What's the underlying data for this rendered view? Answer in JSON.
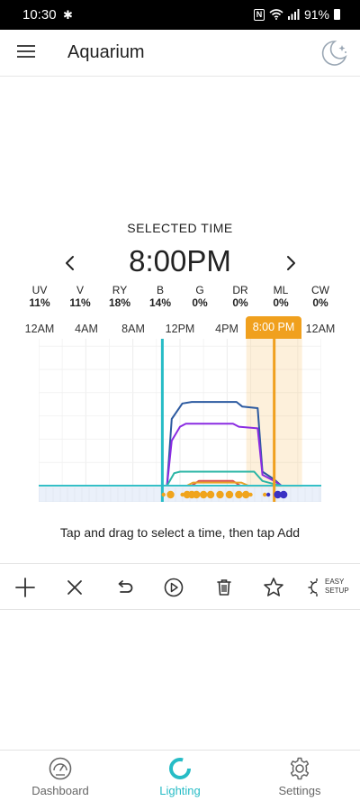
{
  "status_bar": {
    "time": "10:30",
    "battery": "91%",
    "icons": [
      "slack-icon",
      "nfc-icon",
      "wifi-icon",
      "signal-icon",
      "battery-icon"
    ]
  },
  "app_bar": {
    "title": "Aquarium",
    "menu_icon": "hamburger-menu-icon",
    "night_mode_icon": "moon-icon"
  },
  "selected": {
    "label": "SELECTED TIME",
    "time": "8:00PM"
  },
  "channels": [
    {
      "name": "UV",
      "value": "11%"
    },
    {
      "name": "V",
      "value": "11%"
    },
    {
      "name": "RY",
      "value": "18%"
    },
    {
      "name": "B",
      "value": "14%"
    },
    {
      "name": "G",
      "value": "0%"
    },
    {
      "name": "DR",
      "value": "0%"
    },
    {
      "name": "ML",
      "value": "0%"
    },
    {
      "name": "CW",
      "value": "0%"
    }
  ],
  "timeline": {
    "ticks": [
      "12AM",
      "4AM",
      "8AM",
      "12PM",
      "4PM",
      "8:00 PM",
      "12AM"
    ],
    "selected_tick": "8:00 PM"
  },
  "chart_data": {
    "type": "line",
    "x_unit": "hour of day",
    "xlim": [
      0,
      24
    ],
    "ylim": [
      0,
      100
    ],
    "selected_hour": 20,
    "current_hour": 10.5,
    "series": [
      {
        "color": "#2c5aa0",
        "x": [
          0,
          10.9,
          11.3,
          12.2,
          13,
          16.8,
          17.3,
          18.6,
          19.0,
          20.0,
          20.6,
          24
        ],
        "y": [
          0,
          0,
          43,
          53,
          54,
          54,
          51,
          50,
          9,
          4,
          0,
          0
        ]
      },
      {
        "color": "#8a2be2",
        "x": [
          0,
          10.9,
          11.3,
          12.0,
          12.5,
          16.5,
          17.0,
          18.6,
          19.0,
          20.0,
          20.6,
          24
        ],
        "y": [
          0,
          0,
          29,
          38,
          40,
          40,
          38,
          37,
          7,
          3,
          0,
          0
        ]
      },
      {
        "color": "#2ab5a5",
        "x": [
          0,
          10.9,
          11.5,
          12.0,
          17.5,
          18.3,
          19.0,
          20.0,
          20.6,
          24
        ],
        "y": [
          0,
          0,
          8,
          9,
          9,
          9,
          3,
          1,
          0,
          0
        ]
      },
      {
        "color": "#d94a4a",
        "x": [
          0,
          13.0,
          13.6,
          16.5,
          17.1,
          24
        ],
        "y": [
          0,
          0,
          3,
          3,
          0,
          0
        ]
      },
      {
        "color": "#e8a22a",
        "x": [
          0,
          12.6,
          13.1,
          17.2,
          17.8,
          24
        ],
        "y": [
          0,
          0,
          2,
          2,
          0,
          0
        ]
      },
      {
        "color": "#35bfc7",
        "x": [
          0,
          24
        ],
        "y": [
          0,
          0
        ]
      }
    ],
    "markers": [
      {
        "x": 10.6,
        "size": "small",
        "color": "#f0a41c"
      },
      {
        "x": 11.2,
        "size": "large",
        "color": "#f0a41c"
      },
      {
        "x": 12.2,
        "size": "small",
        "color": "#f0a41c"
      },
      {
        "x": 12.6,
        "size": "large",
        "color": "#f0a41c"
      },
      {
        "x": 13.0,
        "size": "large",
        "color": "#f0a41c"
      },
      {
        "x": 13.4,
        "size": "large",
        "color": "#f0a41c"
      },
      {
        "x": 14.0,
        "size": "large",
        "color": "#f0a41c"
      },
      {
        "x": 14.6,
        "size": "large",
        "color": "#f0a41c"
      },
      {
        "x": 15.4,
        "size": "large",
        "color": "#f0a41c"
      },
      {
        "x": 16.2,
        "size": "large",
        "color": "#f0a41c"
      },
      {
        "x": 17.0,
        "size": "large",
        "color": "#f0a41c"
      },
      {
        "x": 17.6,
        "size": "large",
        "color": "#f0a41c"
      },
      {
        "x": 18.0,
        "size": "small",
        "color": "#f0a41c"
      },
      {
        "x": 19.2,
        "size": "small",
        "color": "#f0a41c"
      },
      {
        "x": 19.5,
        "size": "small",
        "color": "#3a32c4"
      },
      {
        "x": 20.3,
        "size": "large",
        "color": "#3a32c4"
      },
      {
        "x": 20.8,
        "size": "large",
        "color": "#3a32c4"
      }
    ]
  },
  "hint": "Tap and drag to select a time, then tap Add",
  "toolbar": {
    "buttons": [
      "add-icon",
      "close-icon",
      "undo-icon",
      "play-icon",
      "trash-icon",
      "star-icon"
    ],
    "easy_setup_line1": "EASY",
    "easy_setup_line2": "SETUP"
  },
  "bottom_nav": {
    "items": [
      {
        "label": "Dashboard",
        "icon": "dashboard-gauge-icon"
      },
      {
        "label": "Lighting",
        "icon": "lighting-ring-icon",
        "active": true
      },
      {
        "label": "Settings",
        "icon": "gear-icon"
      }
    ]
  },
  "colors": {
    "accent": "#27bcc6",
    "selected": "#f0a01e",
    "text": "#222222"
  }
}
